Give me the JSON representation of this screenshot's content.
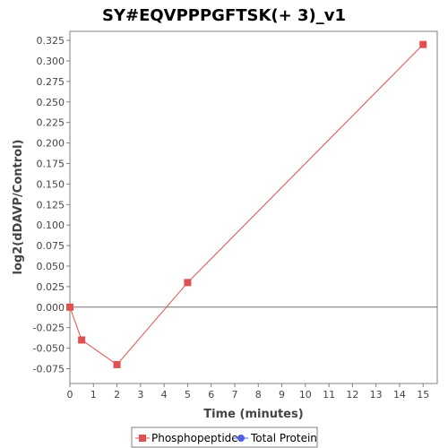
{
  "chart_data": {
    "type": "line",
    "title": "SY#EQVPPPGFTSK(+ 3)_v1",
    "xlabel": "Time (minutes)",
    "ylabel": "log2(dDAVP/Control)",
    "xlim": [
      0,
      15.6
    ],
    "ylim": [
      -0.093,
      0.336
    ],
    "x_ticks": [
      0,
      1,
      2,
      3,
      4,
      5,
      6,
      7,
      8,
      9,
      10,
      11,
      12,
      13,
      14,
      15
    ],
    "y_ticks": [
      -0.075,
      -0.05,
      -0.025,
      0.0,
      0.025,
      0.05,
      0.075,
      0.1,
      0.125,
      0.15,
      0.175,
      0.2,
      0.225,
      0.25,
      0.275,
      0.3,
      0.325
    ],
    "y_tick_labels": [
      "-0.075",
      "-0.050",
      "-0.025",
      "0.000",
      "0.025",
      "0.050",
      "0.075",
      "0.100",
      "0.125",
      "0.150",
      "0.175",
      "0.200",
      "0.225",
      "0.250",
      "0.275",
      "0.300",
      "0.325"
    ],
    "zero_line": 0,
    "grid": false,
    "legend_position": "bottom",
    "series": [
      {
        "name": "Phosphopeptide",
        "color": "#e05050",
        "marker": "square",
        "x": [
          0,
          0.5,
          2,
          5,
          15
        ],
        "y": [
          0.0,
          -0.04,
          -0.07,
          0.03,
          0.32
        ]
      },
      {
        "name": "Total Protein",
        "color": "#5060e0",
        "marker": "circle",
        "x": [],
        "y": []
      }
    ]
  }
}
